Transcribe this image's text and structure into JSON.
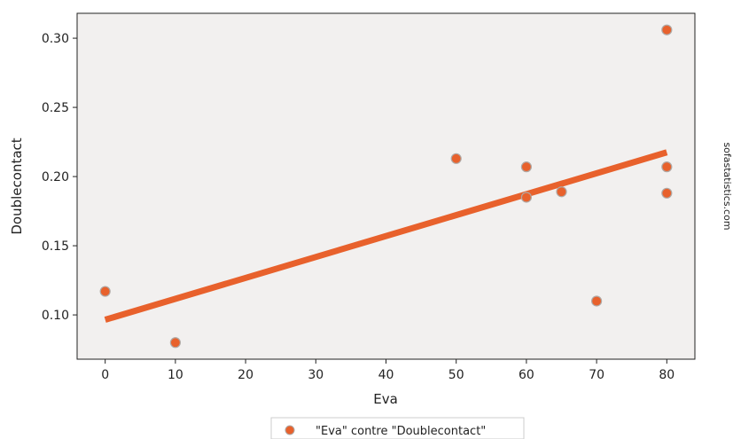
{
  "chart_data": {
    "type": "scatter",
    "xlabel": "Eva",
    "ylabel": "Doublecontact",
    "xlim": [
      -4,
      84
    ],
    "ylim": [
      0.068,
      0.318
    ],
    "x_ticks": [
      0,
      10,
      20,
      30,
      40,
      50,
      60,
      70,
      80
    ],
    "y_ticks": [
      0.1,
      0.15,
      0.2,
      0.25,
      0.3
    ],
    "grid": false,
    "legend_position": "bottom-center",
    "watermark": "sofastatistics.com",
    "series": [
      {
        "name": "\"Eva\" contre \"Doublecontact\"",
        "color": "#e8612c",
        "points": [
          {
            "x": 0,
            "y": 0.117
          },
          {
            "x": 10,
            "y": 0.08
          },
          {
            "x": 50,
            "y": 0.213
          },
          {
            "x": 60,
            "y": 0.207
          },
          {
            "x": 60,
            "y": 0.185
          },
          {
            "x": 65,
            "y": 0.189
          },
          {
            "x": 70,
            "y": 0.11
          },
          {
            "x": 80,
            "y": 0.306
          },
          {
            "x": 80,
            "y": 0.207
          },
          {
            "x": 80,
            "y": 0.188
          }
        ]
      }
    ],
    "trend_line": {
      "color": "#e8612c",
      "points": [
        {
          "x": 0,
          "y": 0.0965
        },
        {
          "x": 80,
          "y": 0.2175
        }
      ]
    },
    "colors": {
      "plot_background": "#f2f0ef",
      "marker_edge": "#b0a8a4"
    }
  }
}
